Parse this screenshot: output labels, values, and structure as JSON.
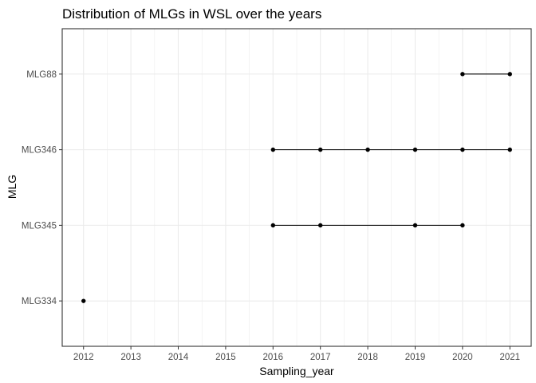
{
  "chart_data": {
    "type": "scatter",
    "title": "Distribution of MLGs in WSL over the years",
    "xlabel": "Sampling_year",
    "ylabel": "MLG",
    "x_ticks": [
      "2012",
      "2013",
      "2014",
      "2015",
      "2016",
      "2017",
      "2018",
      "2019",
      "2020",
      "2021"
    ],
    "y_categories": [
      "MLG334",
      "MLG345",
      "MLG346",
      "MLG88"
    ],
    "xlim": [
      2011.55,
      2021.45
    ],
    "grid": true,
    "connect_points": true,
    "series": [
      {
        "category": "MLG334",
        "x": [
          2012
        ]
      },
      {
        "category": "MLG345",
        "x": [
          2016,
          2017,
          2019,
          2020
        ]
      },
      {
        "category": "MLG346",
        "x": [
          2016,
          2017,
          2018,
          2019,
          2020,
          2021
        ]
      },
      {
        "category": "MLG88",
        "x": [
          2020,
          2021
        ]
      }
    ],
    "colors": {
      "point": "#000000",
      "line": "#000000",
      "grid": "#ebebeb",
      "border": "#333333"
    }
  }
}
